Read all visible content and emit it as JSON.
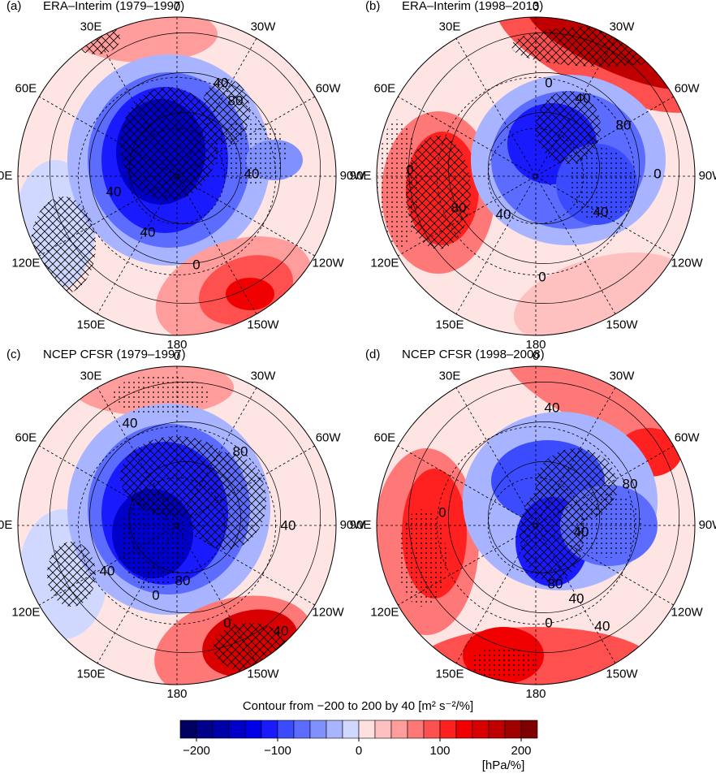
{
  "panels": [
    {
      "label": "(a)",
      "title": "ERA–Interim (1979–1997)",
      "contour_labels": [
        "40",
        "80",
        "40",
        "40",
        "40",
        "0"
      ]
    },
    {
      "label": "(b)",
      "title": "ERA–Interim (1998–2013)",
      "contour_labels": [
        "0",
        "40",
        "80",
        "0",
        "80",
        "40",
        "40",
        "0",
        "0"
      ]
    },
    {
      "label": "(c)",
      "title": "NCEP CFSR (1979–1997)",
      "contour_labels": [
        "40",
        "80",
        "40",
        "40",
        "0",
        "80",
        "0",
        "40"
      ]
    },
    {
      "label": "(d)",
      "title": "NCEP CFSR (1998–2008)",
      "contour_labels": [
        "40",
        "80",
        "0",
        "40",
        "80",
        "40",
        "0",
        "40"
      ]
    }
  ],
  "longitude_labels": [
    "0",
    "30W",
    "60W",
    "90W",
    "120W",
    "150W",
    "180",
    "150E",
    "120E",
    "90E",
    "60E",
    "30E"
  ],
  "colorbar": {
    "title": "Contour from −200 to 200 by 40 [m² s⁻²/%]",
    "colors": [
      "#000060",
      "#00008b",
      "#0000a8",
      "#0000c8",
      "#0000e6",
      "#1a1aff",
      "#3b4cff",
      "#5c6cff",
      "#8090ff",
      "#a8b4ff",
      "#d0d8ff",
      "#ffe0e0",
      "#ffc0c0",
      "#ff9c9c",
      "#ff7878",
      "#ff5050",
      "#ff2020",
      "#f00000",
      "#d80000",
      "#c00000",
      "#a00000",
      "#7f0000"
    ],
    "tick_labels": [
      "−200",
      "−100",
      "0",
      "100",
      "200"
    ],
    "unit": "[hPa/%]"
  }
}
